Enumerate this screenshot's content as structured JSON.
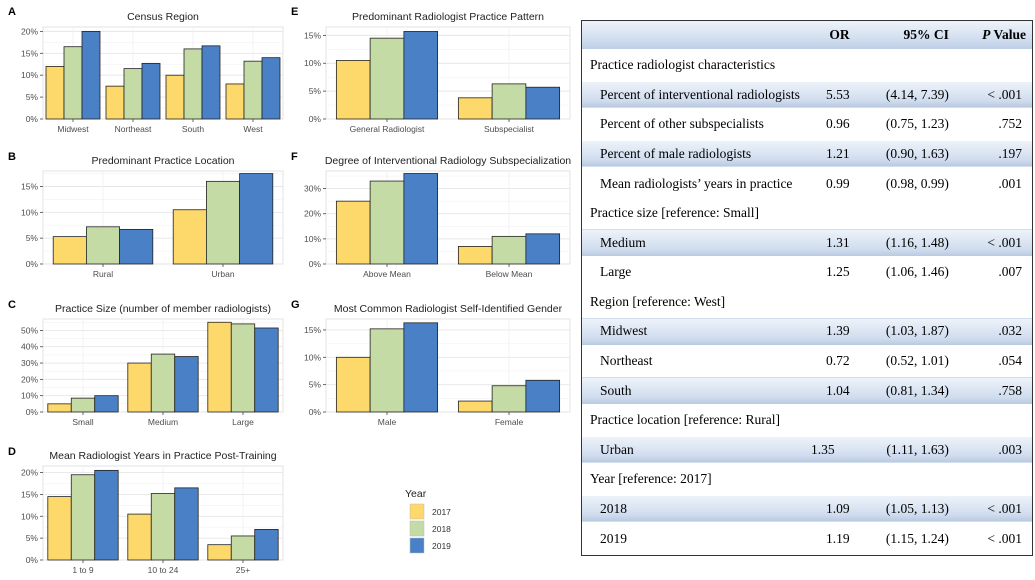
{
  "chart_data": [
    {
      "letter": "A",
      "type": "bar",
      "title": "Census Region",
      "categories": [
        "Midwest",
        "Northeast",
        "South",
        "West"
      ],
      "series": [
        {
          "name": "2017",
          "values": [
            12,
            7.5,
            10,
            8
          ]
        },
        {
          "name": "2018",
          "values": [
            16.5,
            11.5,
            16,
            13.2
          ]
        },
        {
          "name": "2019",
          "values": [
            20,
            12.7,
            16.7,
            14
          ]
        }
      ],
      "ylim": [
        0,
        21
      ],
      "yticks": [
        "0%",
        "5%",
        "10%",
        "15%",
        "20%"
      ],
      "ytick_values": [
        0,
        5,
        10,
        15,
        20
      ]
    },
    {
      "letter": "B",
      "type": "bar",
      "title": "Predominant Practice Location",
      "categories": [
        "Rural",
        "Urban"
      ],
      "series": [
        {
          "name": "2017",
          "values": [
            5.3,
            10.5
          ]
        },
        {
          "name": "2018",
          "values": [
            7.2,
            16
          ]
        },
        {
          "name": "2019",
          "values": [
            6.7,
            17.5
          ]
        }
      ],
      "ylim": [
        0,
        18
      ],
      "yticks": [
        "0%",
        "5%",
        "10%",
        "15%"
      ],
      "ytick_values": [
        0,
        5,
        10,
        15
      ]
    },
    {
      "letter": "C",
      "type": "bar",
      "title": "Practice Size (number of member radiologists)",
      "categories": [
        "Small",
        "Medium",
        "Large"
      ],
      "series": [
        {
          "name": "2017",
          "values": [
            5,
            30,
            55
          ]
        },
        {
          "name": "2018",
          "values": [
            8.5,
            35.5,
            54
          ]
        },
        {
          "name": "2019",
          "values": [
            10,
            34,
            51.5
          ]
        }
      ],
      "ylim": [
        0,
        57
      ],
      "yticks": [
        "0%",
        "10%",
        "20%",
        "30%",
        "40%",
        "50%"
      ],
      "ytick_values": [
        0,
        10,
        20,
        30,
        40,
        50
      ]
    },
    {
      "letter": "D",
      "type": "bar",
      "title": "Mean Radiologist Years in Practice Post-Training",
      "categories": [
        "1 to 9",
        "10 to 24",
        "25+"
      ],
      "series": [
        {
          "name": "2017",
          "values": [
            14.5,
            10.5,
            3.5
          ]
        },
        {
          "name": "2018",
          "values": [
            19.5,
            15.2,
            5.5
          ]
        },
        {
          "name": "2019",
          "values": [
            20.5,
            16.5,
            7
          ]
        }
      ],
      "ylim": [
        0,
        21.5
      ],
      "yticks": [
        "0%",
        "5%",
        "10%",
        "15%",
        "20%"
      ],
      "ytick_values": [
        0,
        5,
        10,
        15,
        20
      ]
    },
    {
      "letter": "E",
      "type": "bar",
      "title": "Predominant Radiologist Practice Pattern",
      "categories": [
        "General Radiologist",
        "Subspecialist"
      ],
      "series": [
        {
          "name": "2017",
          "values": [
            10.5,
            3.8
          ]
        },
        {
          "name": "2018",
          "values": [
            14.5,
            6.3
          ]
        },
        {
          "name": "2019",
          "values": [
            15.7,
            5.7
          ]
        }
      ],
      "ylim": [
        0,
        16.5
      ],
      "yticks": [
        "0%",
        "5%",
        "10%",
        "15%"
      ],
      "ytick_values": [
        0,
        5,
        10,
        15
      ]
    },
    {
      "letter": "F",
      "type": "bar",
      "title": "Degree of Interventional Radiology Subspecialization",
      "categories": [
        "Above Mean",
        "Below Mean"
      ],
      "series": [
        {
          "name": "2017",
          "values": [
            25,
            7
          ]
        },
        {
          "name": "2018",
          "values": [
            33,
            11
          ]
        },
        {
          "name": "2019",
          "values": [
            36,
            12
          ]
        }
      ],
      "ylim": [
        0,
        37
      ],
      "yticks": [
        "0%",
        "10%",
        "20%",
        "30%"
      ],
      "ytick_values": [
        0,
        10,
        20,
        30
      ]
    },
    {
      "letter": "G",
      "type": "bar",
      "title": "Most Common Radiologist Self-Identified Gender",
      "categories": [
        "Male",
        "Female"
      ],
      "series": [
        {
          "name": "2017",
          "values": [
            10,
            2
          ]
        },
        {
          "name": "2018",
          "values": [
            15.2,
            4.8
          ]
        },
        {
          "name": "2019",
          "values": [
            16.3,
            5.8
          ]
        }
      ],
      "ylim": [
        0,
        17
      ],
      "yticks": [
        "0%",
        "5%",
        "10%",
        "15%"
      ],
      "ytick_values": [
        0,
        5,
        10,
        15
      ]
    }
  ],
  "colors": {
    "2017": "#fdd86b",
    "2018": "#c5dba5",
    "2019": "#4a80c6",
    "grid": "#e6e6e6",
    "panel": "#ffffff"
  },
  "legend": {
    "title": "Year",
    "items": [
      "2017",
      "2018",
      "2019"
    ]
  },
  "table": {
    "headers": {
      "or": "OR",
      "ci": "95% CI",
      "p_italic": "P",
      "p_rest": " Value"
    },
    "rows": [
      {
        "kind": "section",
        "label": "Practice radiologist  characteristics"
      },
      {
        "kind": "item",
        "label": "Percent of interventional radiologists",
        "or": "5.53",
        "ci": "(4.14, 7.39)",
        "p": "< .001"
      },
      {
        "kind": "item",
        "label": "Percent of other subspecialists",
        "or": "0.96",
        "ci": "(0.75, 1.23)",
        "p": ".752"
      },
      {
        "kind": "item",
        "label": "Percent of male radiologists",
        "or": "1.21",
        "ci": "(0.90, 1.63)",
        "p": ".197"
      },
      {
        "kind": "item",
        "label": "Mean radiologists’ years in practice",
        "or": "0.99",
        "ci": "(0.98, 0.99)",
        "p": ".001"
      },
      {
        "kind": "section",
        "label": "Practice size [reference: Small]"
      },
      {
        "kind": "item",
        "label": "Medium",
        "or": "1.31",
        "ci": "(1.16, 1.48)",
        "p": "< .001"
      },
      {
        "kind": "item",
        "label": "Large",
        "or": "1.25",
        "ci": "(1.06, 1.46)",
        "p": ".007"
      },
      {
        "kind": "section",
        "label": "Region [reference: West]"
      },
      {
        "kind": "item",
        "label": "Midwest",
        "or": "1.39",
        "ci": "(1.03, 1.87)",
        "p": ".032"
      },
      {
        "kind": "item",
        "label": "Northeast",
        "or": "0.72",
        "ci": "(0.52, 1.01)",
        "p": ".054"
      },
      {
        "kind": "item",
        "label": "South",
        "or": "1.04",
        "ci": "(0.81, 1.34)",
        "p": ".758"
      },
      {
        "kind": "section",
        "label": "Practice location [reference: Rural]"
      },
      {
        "kind": "item",
        "label": "Urban",
        "or": "1.35",
        "ci": "(1.11, 1.63)",
        "p": ".003",
        "shifted": true
      },
      {
        "kind": "section",
        "label": "Year [reference: 2017]"
      },
      {
        "kind": "item",
        "label": "2018",
        "or": "1.09",
        "ci": "(1.05, 1.13)",
        "p": "< .001"
      },
      {
        "kind": "item",
        "label": "2019",
        "or": "1.19",
        "ci": "(1.15, 1.24)",
        "p": "< .001"
      }
    ]
  }
}
